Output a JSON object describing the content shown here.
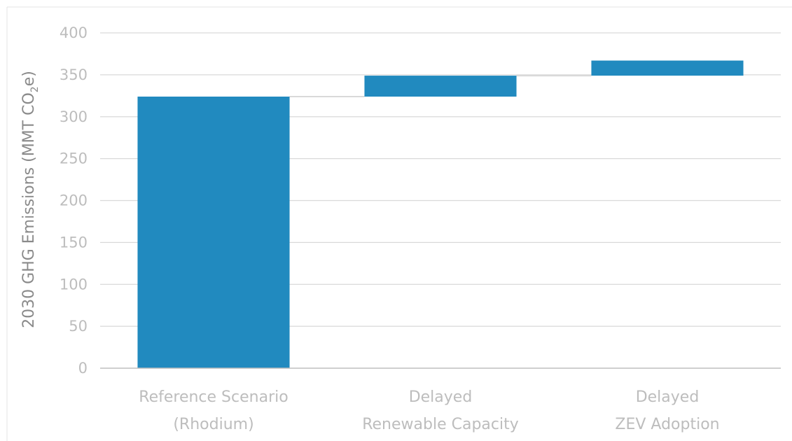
{
  "chart_data": {
    "type": "bar",
    "subtype": "waterfall",
    "title": "",
    "xlabel": "",
    "ylabel": {
      "prefix": "2030 GHG Emissions (MMT CO",
      "subscript": "2",
      "suffix": "e)"
    },
    "ylim": [
      0,
      400
    ],
    "yticks": [
      0,
      50,
      100,
      150,
      200,
      250,
      300,
      350,
      400
    ],
    "grid": true,
    "categories": [
      {
        "lines": [
          "Reference Scenario",
          "(Rhodium)"
        ]
      },
      {
        "lines": [
          "Delayed",
          "Renewable Capacity"
        ]
      },
      {
        "lines": [
          "Delayed",
          "ZEV Adoption"
        ]
      }
    ],
    "bars": [
      {
        "start": 0,
        "end": 324
      },
      {
        "start": 324,
        "end": 349
      },
      {
        "start": 349,
        "end": 367
      }
    ],
    "connectors": true,
    "colors": {
      "bar": "#218abf",
      "grid": "#d9d9d9",
      "axis": "#bfbfbf",
      "connector": "#d9d9d9",
      "tick_text": "#bdbdbd",
      "ylabel_text": "#8a8a8a"
    }
  }
}
